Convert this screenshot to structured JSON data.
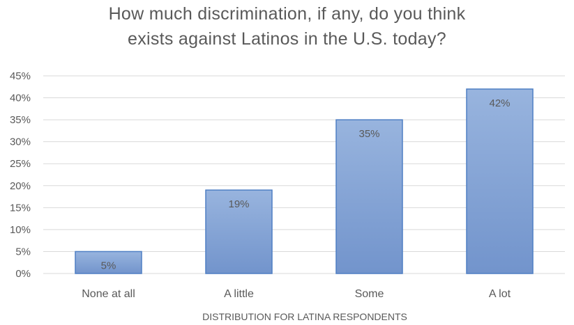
{
  "chart_data": {
    "type": "bar",
    "title_lines": [
      "How much discrimination, if any, do you think",
      "exists against Latinos in the U.S. today?"
    ],
    "xlabel": "DISTRIBUTION FOR LATINA RESPONDENTS",
    "ylabel": "",
    "categories": [
      "None at all",
      "A little",
      "Some",
      "A lot"
    ],
    "values": [
      5,
      19,
      35,
      42
    ],
    "data_labels": [
      "5%",
      "19%",
      "35%",
      "42%"
    ],
    "y_ticks": [
      "0%",
      "5%",
      "10%",
      "15%",
      "20%",
      "25%",
      "30%",
      "35%",
      "40%",
      "45%"
    ],
    "ylim": [
      0,
      45
    ],
    "grid": true,
    "legend": "none",
    "colors": {
      "bar_fill_top": "#98b4de",
      "bar_fill_bottom": "#7294cc",
      "bar_stroke": "#4f7fc4",
      "gridline": "#d9d9d9",
      "text": "#595959"
    }
  }
}
